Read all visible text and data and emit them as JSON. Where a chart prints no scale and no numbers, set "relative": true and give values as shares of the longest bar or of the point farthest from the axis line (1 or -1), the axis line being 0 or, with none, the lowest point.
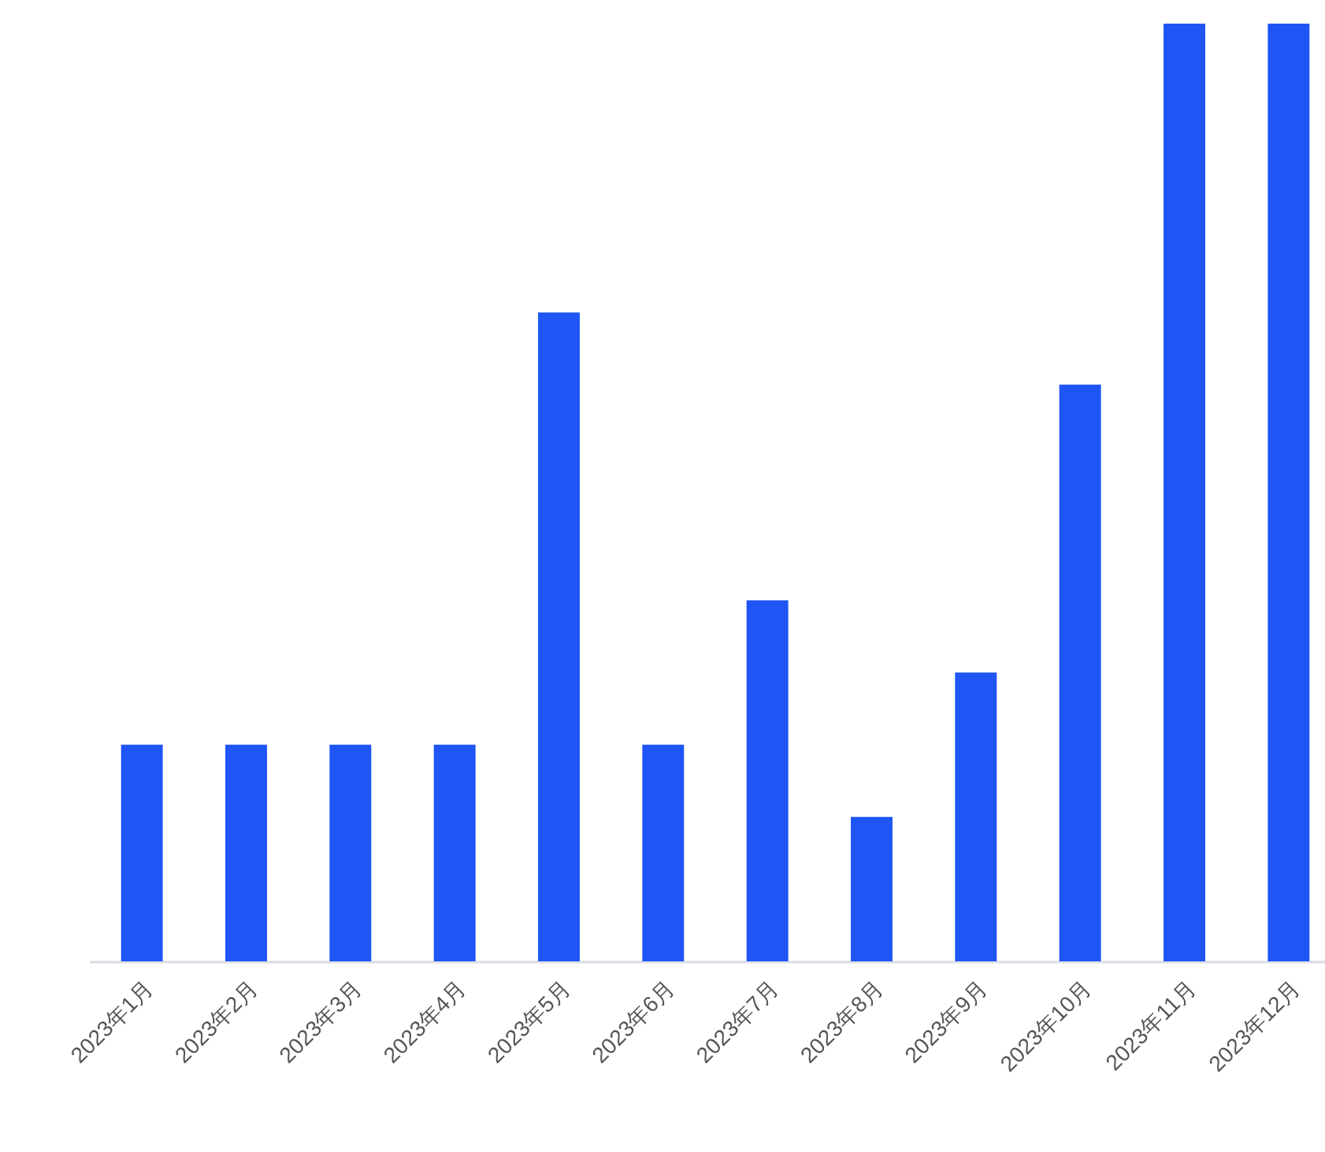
{
  "chart_data": {
    "type": "bar",
    "relative": true,
    "categories": [
      "2023年1月",
      "2023年2月",
      "2023年3月",
      "2023年4月",
      "2023年5月",
      "2023年6月",
      "2023年7月",
      "2023年8月",
      "2023年9月",
      "2023年10月",
      "2023年11月",
      "2023年12月"
    ],
    "values": [
      0.231,
      0.231,
      0.231,
      0.231,
      0.692,
      0.231,
      0.385,
      0.154,
      0.308,
      0.615,
      1,
      1
    ],
    "color": "#1f55f5"
  }
}
